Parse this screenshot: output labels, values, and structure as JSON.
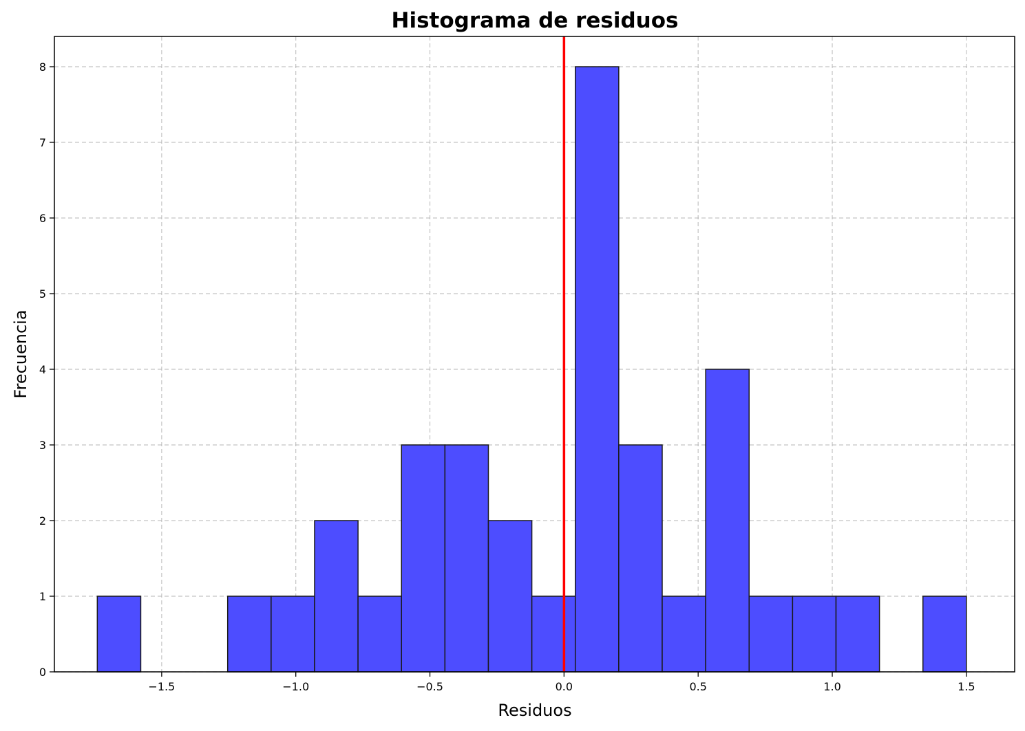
{
  "chart_data": {
    "type": "bar",
    "title": "Histograma de residuos",
    "xlabel": "Residuos",
    "ylabel": "Frecuencia",
    "xlim": [
      -1.9,
      1.68
    ],
    "ylim": [
      0,
      8.4
    ],
    "xticks": [
      -1.5,
      -1.0,
      -0.5,
      0.0,
      0.5,
      1.0,
      1.5
    ],
    "xtick_labels": [
      "−1.5",
      "−1.0",
      "−0.5",
      "0.0",
      "0.5",
      "1.0",
      "1.5"
    ],
    "yticks": [
      0,
      1,
      2,
      3,
      4,
      5,
      6,
      7,
      8
    ],
    "ytick_labels": [
      "0",
      "1",
      "2",
      "3",
      "4",
      "5",
      "6",
      "7",
      "8"
    ],
    "bins": [
      {
        "x0": -1.74,
        "x1": -1.578,
        "count": 1
      },
      {
        "x0": -1.578,
        "x1": -1.416,
        "count": 0
      },
      {
        "x0": -1.416,
        "x1": -1.254,
        "count": 0
      },
      {
        "x0": -1.254,
        "x1": -1.092,
        "count": 1
      },
      {
        "x0": -1.092,
        "x1": -0.93,
        "count": 1
      },
      {
        "x0": -0.93,
        "x1": -0.768,
        "count": 2
      },
      {
        "x0": -0.768,
        "x1": -0.606,
        "count": 1
      },
      {
        "x0": -0.606,
        "x1": -0.444,
        "count": 3
      },
      {
        "x0": -0.444,
        "x1": -0.282,
        "count": 3
      },
      {
        "x0": -0.282,
        "x1": -0.12,
        "count": 2
      },
      {
        "x0": -0.12,
        "x1": 0.042,
        "count": 1
      },
      {
        "x0": 0.042,
        "x1": 0.204,
        "count": 8
      },
      {
        "x0": 0.204,
        "x1": 0.366,
        "count": 3
      },
      {
        "x0": 0.366,
        "x1": 0.528,
        "count": 1
      },
      {
        "x0": 0.528,
        "x1": 0.69,
        "count": 4
      },
      {
        "x0": 0.69,
        "x1": 0.852,
        "count": 1
      },
      {
        "x0": 0.852,
        "x1": 1.014,
        "count": 1
      },
      {
        "x0": 1.014,
        "x1": 1.176,
        "count": 1
      },
      {
        "x0": 1.176,
        "x1": 1.338,
        "count": 0
      },
      {
        "x0": 1.338,
        "x1": 1.5,
        "count": 1
      }
    ],
    "reference_line": {
      "x": 0.0,
      "color": "#ff0000"
    },
    "bar_color": "#4d4dff",
    "edge_color": "#1a1a1a",
    "grid": true
  }
}
